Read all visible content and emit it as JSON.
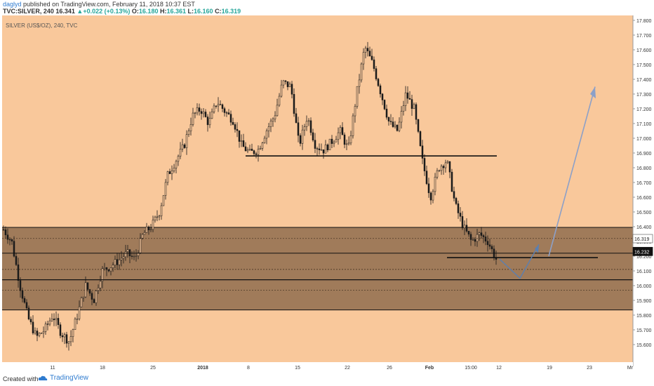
{
  "header": {
    "author": "daglyd",
    "published_text": "published on TradingView.com, February 11, 2018 10:37 EST",
    "symbol_line": "TVC:SILVER, 240",
    "last": "16.341",
    "change": "+0.022 (+0.13%)",
    "open_label": "O:",
    "open": "16.180",
    "high_label": "H:",
    "high": "16.361",
    "low_label": "L:",
    "low": "16.160",
    "close_label": "C:",
    "close": "16.319"
  },
  "chart": {
    "symbol_label": "SILVER (US$/OZ), 240, TVC",
    "background": "#f9c89b",
    "zone_color": "#8c6a4c",
    "price_axis": [
      "17.800",
      "17.700",
      "17.600",
      "17.500",
      "17.400",
      "17.300",
      "17.200",
      "17.100",
      "17.000",
      "16.900",
      "16.800",
      "16.700",
      "16.600",
      "16.500",
      "16.400",
      "16.300",
      "16.200",
      "16.100",
      "16.000",
      "15.900",
      "15.800",
      "15.700",
      "15.600"
    ],
    "price_tags": [
      {
        "text": "16.319",
        "style": "light"
      },
      {
        "text": "16.232",
        "style": "dark"
      }
    ],
    "time_axis": [
      "11",
      "18",
      "25",
      "2018",
      "8",
      "15",
      "22",
      "26",
      "Feb",
      "15:00",
      "12",
      "19",
      "23",
      "Mr"
    ]
  },
  "chart_data": {
    "type": "candlestick",
    "symbol": "SILVER (US$/OZ)",
    "timeframe": "240",
    "ylim": [
      15.55,
      17.83
    ],
    "zones": [
      {
        "from": 15.835,
        "to": 16.395
      }
    ],
    "levels": [
      16.88,
      16.22,
      16.04,
      16.19
    ],
    "projection_arrow": {
      "from": 16.18,
      "low": 16.05,
      "to": 17.35
    },
    "path": [
      16.38,
      16.3,
      16.0,
      15.78,
      15.65,
      15.7,
      15.8,
      15.68,
      15.62,
      15.8,
      16.0,
      15.9,
      16.1,
      16.13,
      16.17,
      16.22,
      16.18,
      16.35,
      16.4,
      16.5,
      16.75,
      16.85,
      16.95,
      17.15,
      17.2,
      17.1,
      17.25,
      17.18,
      17.12,
      16.95,
      16.9,
      16.92,
      17.05,
      17.15,
      17.38,
      17.35,
      16.95,
      17.15,
      16.95,
      16.92,
      16.98,
      17.05,
      16.92,
      17.3,
      17.62,
      17.5,
      17.3,
      17.1,
      17.05,
      17.3,
      17.2,
      16.85,
      16.6,
      16.8,
      16.85,
      16.55,
      16.4,
      16.3,
      16.35,
      16.3,
      16.18
    ]
  }
}
